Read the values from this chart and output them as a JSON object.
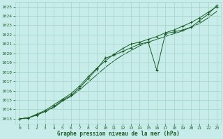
{
  "title": "Graphe pression niveau de la mer (hPa)",
  "background_color": "#c8ecea",
  "grid_color": "#a8d8cc",
  "line_color": "#1a5c28",
  "xlim": [
    -0.5,
    23.5
  ],
  "ylim": [
    1012.5,
    1025.5
  ],
  "yticks": [
    1013,
    1014,
    1015,
    1016,
    1017,
    1018,
    1019,
    1020,
    1021,
    1022,
    1023,
    1024,
    1025
  ],
  "xticks": [
    0,
    1,
    2,
    3,
    4,
    5,
    6,
    7,
    8,
    9,
    10,
    11,
    12,
    13,
    14,
    15,
    16,
    17,
    18,
    19,
    20,
    21,
    22,
    23
  ],
  "series1_x": [
    0,
    1,
    2,
    3,
    4,
    5,
    6,
    7,
    8,
    9,
    10,
    11,
    12,
    13,
    14,
    15,
    16,
    17,
    18,
    19,
    20,
    21,
    22,
    23
  ],
  "series1_y": [
    1013.0,
    1013.1,
    1013.4,
    1013.8,
    1014.3,
    1015.0,
    1015.5,
    1016.3,
    1017.3,
    1018.3,
    1019.5,
    1019.8,
    1020.2,
    1020.6,
    1021.0,
    1021.2,
    1018.2,
    1022.1,
    1022.3,
    1022.5,
    1022.8,
    1023.5,
    1024.2,
    1025.1
  ],
  "series2_x": [
    0,
    1,
    2,
    3,
    4,
    5,
    6,
    7,
    8,
    9,
    10,
    11,
    12,
    13,
    14,
    15,
    16,
    17,
    18,
    19,
    20,
    21,
    22,
    23
  ],
  "series2_y": [
    1013.0,
    1013.1,
    1013.5,
    1013.9,
    1014.5,
    1015.1,
    1015.7,
    1016.5,
    1017.5,
    1018.4,
    1019.2,
    1019.9,
    1020.5,
    1021.0,
    1021.2,
    1021.5,
    1021.8,
    1022.2,
    1022.5,
    1022.9,
    1023.3,
    1023.8,
    1024.4,
    1025.0
  ],
  "series3_x": [
    0,
    1,
    2,
    3,
    4,
    5,
    6,
    7,
    8,
    9,
    10,
    11,
    12,
    13,
    14,
    15,
    16,
    17,
    18,
    19,
    20,
    21,
    22,
    23
  ],
  "series3_y": [
    1013.0,
    1013.1,
    1013.4,
    1013.8,
    1014.2,
    1014.9,
    1015.4,
    1016.1,
    1016.9,
    1017.7,
    1018.5,
    1019.2,
    1019.8,
    1020.3,
    1020.8,
    1021.2,
    1021.5,
    1021.8,
    1022.1,
    1022.4,
    1022.8,
    1023.2,
    1023.8,
    1024.5
  ]
}
